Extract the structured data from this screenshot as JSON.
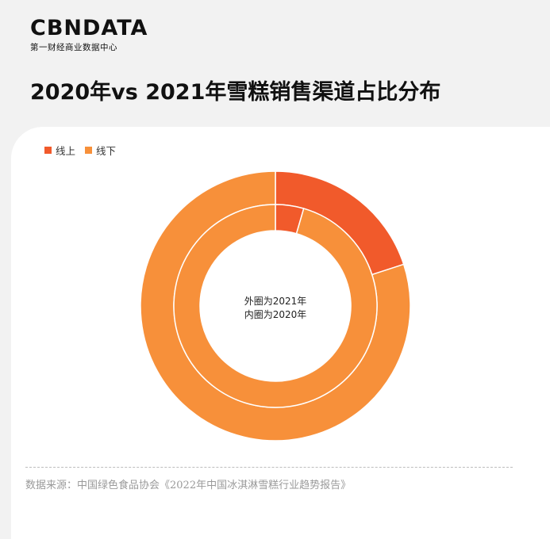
{
  "logo": {
    "main": "CBNDATA",
    "sub": "第一财经商业数据中心"
  },
  "title": "2020年vs 2021年雪糕销售渠道占比分布",
  "chart_data": {
    "type": "pie",
    "title": "2020年vs 2021年雪糕销售渠道占比分布",
    "categories": [
      "线上",
      "线下"
    ],
    "colors": [
      "#f15a2b",
      "#f7903a"
    ],
    "series": [
      {
        "values": [
          20,
          80
        ]
      },
      {
        "values": [
          4.5,
          95.5
        ]
      }
    ],
    "legend_position": "top-left",
    "center_text": [
      "外圈为2021年",
      "内圈为2020年"
    ]
  },
  "source": "数据来源：中国绿色食品协会《2022年中国冰淇淋雪糕行业趋势报告》"
}
